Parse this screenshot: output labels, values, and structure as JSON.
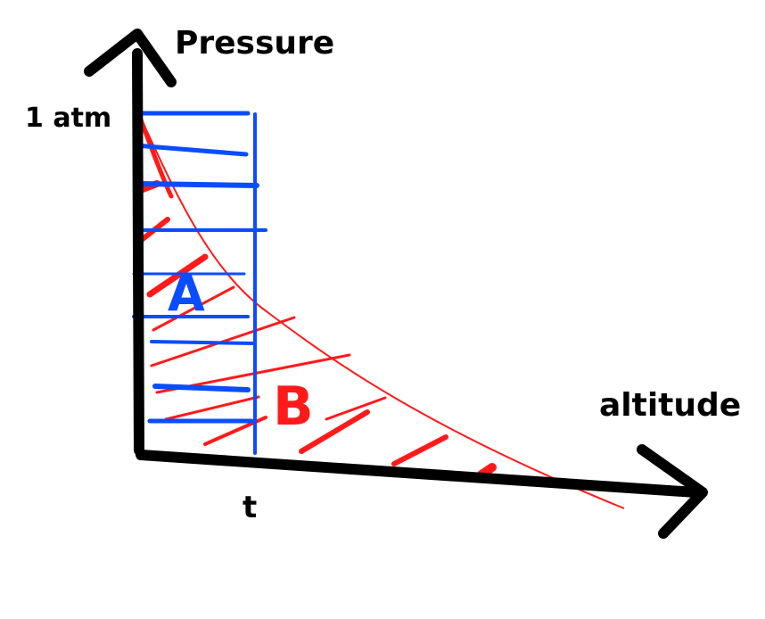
{
  "labels": {
    "y_axis": "Pressure",
    "x_axis": "altitude",
    "y_tick": "1 atm",
    "x_tick": "t",
    "region_a": "A",
    "region_b": "B"
  },
  "colors": {
    "axis": "#000000",
    "curve": "#ff1a1a",
    "hatch_a": "#0a4cff",
    "hatch_b": "#ff1a1a",
    "background": "#ffffff"
  }
}
